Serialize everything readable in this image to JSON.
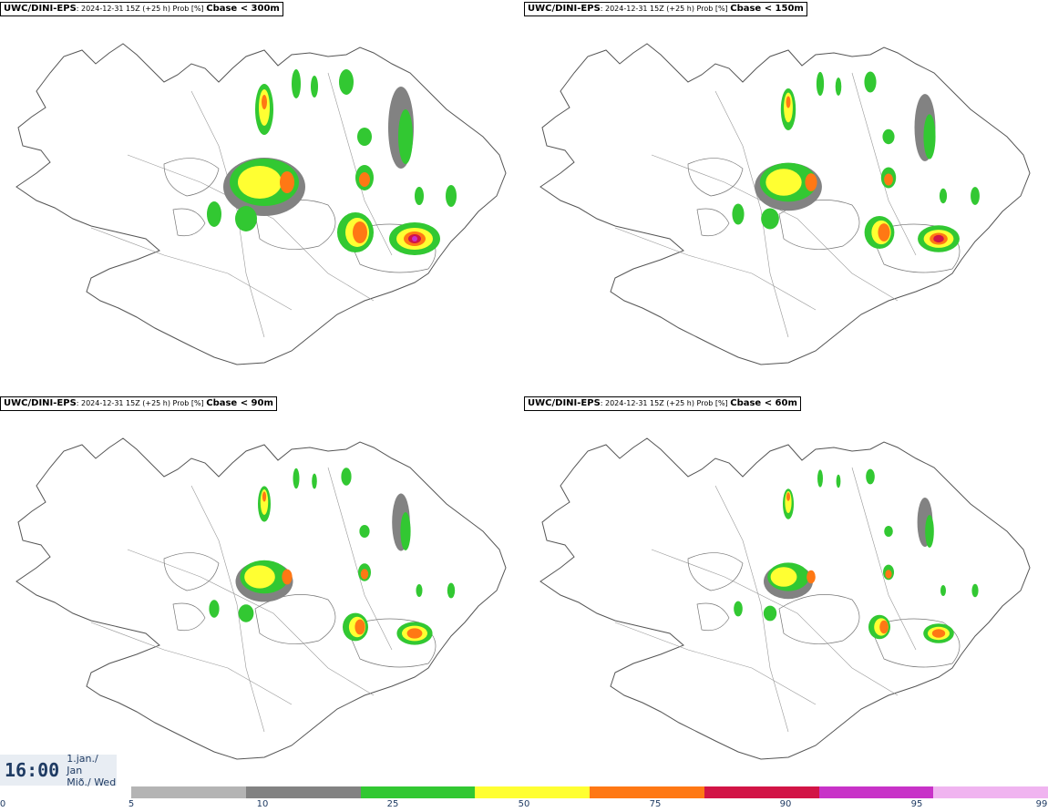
{
  "panels": [
    {
      "model": "UWC/DINI-EPS",
      "info": ": 2024-12-31 15Z (+25 h) Prob [%]",
      "variable": "Cbase < 300m"
    },
    {
      "model": "UWC/DINI-EPS",
      "info": ": 2024-12-31 15Z (+25 h) Prob [%]",
      "variable": "Cbase < 150m"
    },
    {
      "model": "UWC/DINI-EPS",
      "info": ": 2024-12-31 15Z (+25 h) Prob [%]",
      "variable": "Cbase < 90m"
    },
    {
      "model": "UWC/DINI-EPS",
      "info": ": 2024-12-31 15Z (+25 h) Prob [%]",
      "variable": "Cbase < 60m"
    }
  ],
  "time": {
    "hour": "16:00",
    "date_line1": "1.jan./ Jan",
    "date_line2": "Mið./ Wed"
  },
  "legend": {
    "ticks": [
      "0",
      "5",
      "10",
      "25",
      "50",
      "75",
      "90",
      "95",
      "99"
    ],
    "colors": [
      "#b4b4b4",
      "#828282",
      "#32c832",
      "#ffff32",
      "#ff7814",
      "#d21446",
      "#c832c8",
      "#f0b4f0"
    ]
  }
}
